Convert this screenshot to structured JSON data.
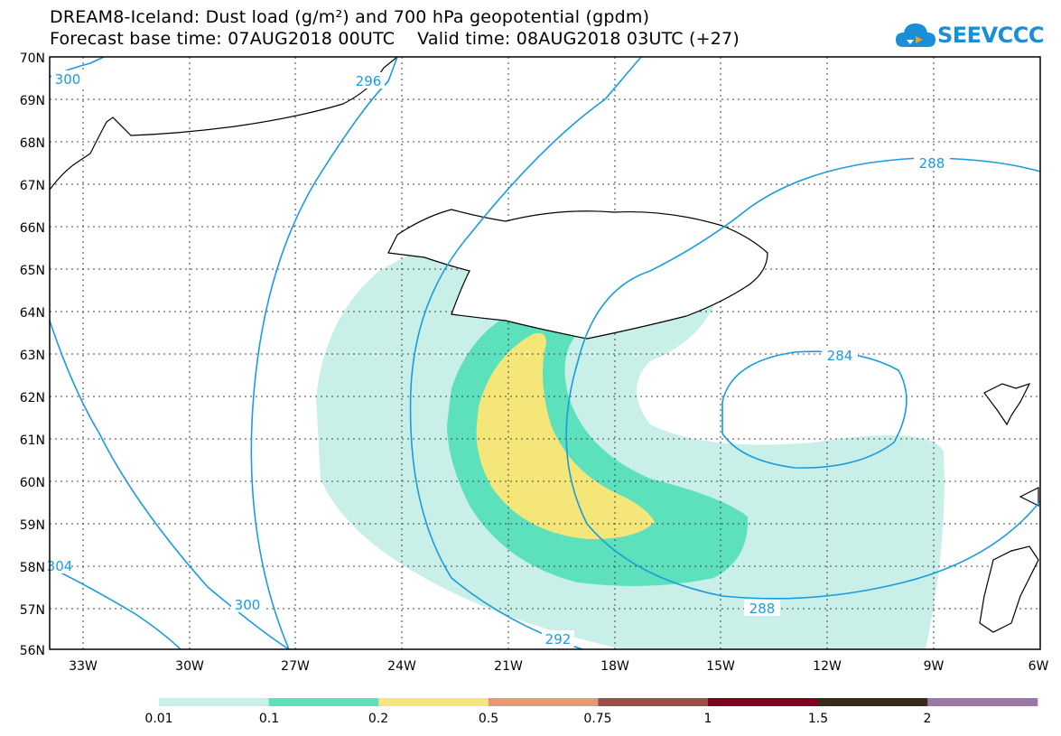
{
  "title_line1": "DREAM8-Iceland: Dust load (g/m²) and 700 hPa geopotential (gpdm)",
  "title_line2": "Forecast base time: 07AUG2018 00UTC    Valid time: 08AUG2018 03UTC (+27)",
  "logo_text": "SEEVCCC",
  "lat_labels": [
    "70N",
    "69N",
    "68N",
    "67N",
    "66N",
    "65N",
    "64N",
    "63N",
    "62N",
    "61N",
    "60N",
    "59N",
    "58N",
    "57N",
    "56N"
  ],
  "lon_labels": [
    "33W",
    "30W",
    "27W",
    "24W",
    "21W",
    "18W",
    "15W",
    "12W",
    "9W",
    "6W"
  ],
  "contour_labels": [
    "300",
    "296",
    "288",
    "284",
    "288",
    "292",
    "300",
    "304"
  ],
  "colorbar": {
    "colors": [
      "#c8f0e8",
      "#5de1bd",
      "#f5e67a",
      "#e9967a",
      "#a34a4a",
      "#800020",
      "#3a2a1a",
      "#9b78a8"
    ],
    "tick_labels": [
      "0.01",
      "0.1",
      "0.2",
      "0.5",
      "0.75",
      "1",
      "1.5",
      "2"
    ]
  },
  "colors": {
    "contour": "#1a9be0",
    "accent": "#1a8fd8"
  }
}
